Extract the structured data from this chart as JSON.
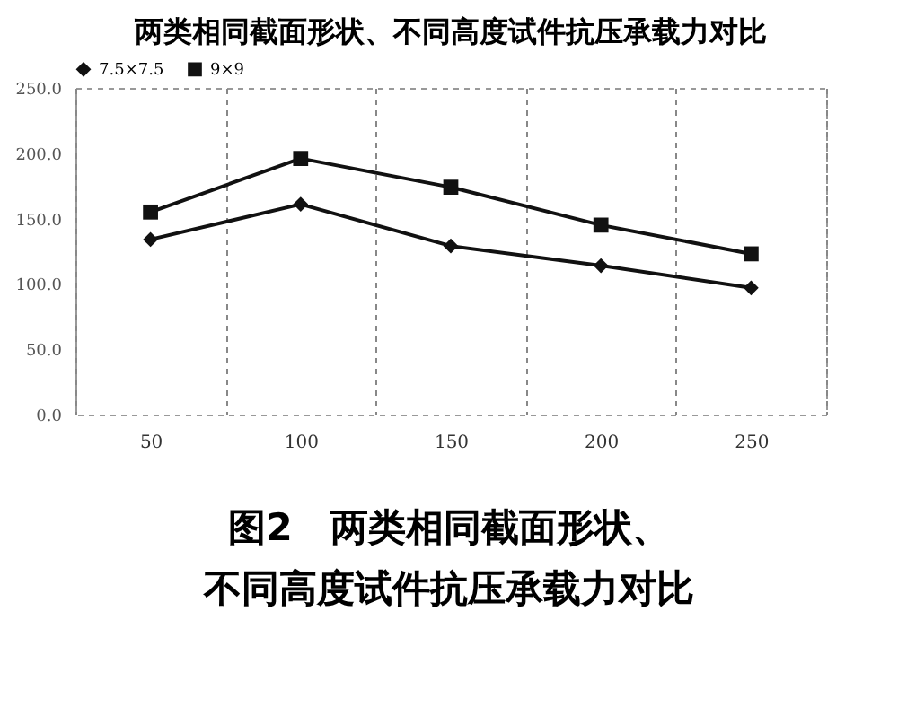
{
  "chart_data": {
    "type": "line",
    "title": "两类相同截面形状、不同高度试件抗压承载力对比",
    "categories": [
      "50",
      "100",
      "150",
      "200",
      "250"
    ],
    "series": [
      {
        "name": "7.5×7.5",
        "color": "#111111",
        "marker": "diamond",
        "values": [
          134,
          161,
          129,
          114,
          97
        ]
      },
      {
        "name": "9×9",
        "color": "#111111",
        "marker": "square",
        "values": [
          155,
          196,
          174,
          145,
          123
        ]
      }
    ],
    "ylim": [
      0,
      250
    ],
    "yticks": [
      {
        "value": 0,
        "label": "0.0"
      },
      {
        "value": 50,
        "label": "50.0"
      },
      {
        "value": 100,
        "label": "100.0"
      },
      {
        "value": 150,
        "label": "150.0"
      },
      {
        "value": 200,
        "label": "200.0"
      },
      {
        "value": 250,
        "label": "250.0"
      }
    ],
    "grid": "x",
    "legend": "top",
    "line_style": "solid",
    "annotations": [
      "图2　两类相同截面形状、不同高度试件抗压承载力对比"
    ]
  }
}
